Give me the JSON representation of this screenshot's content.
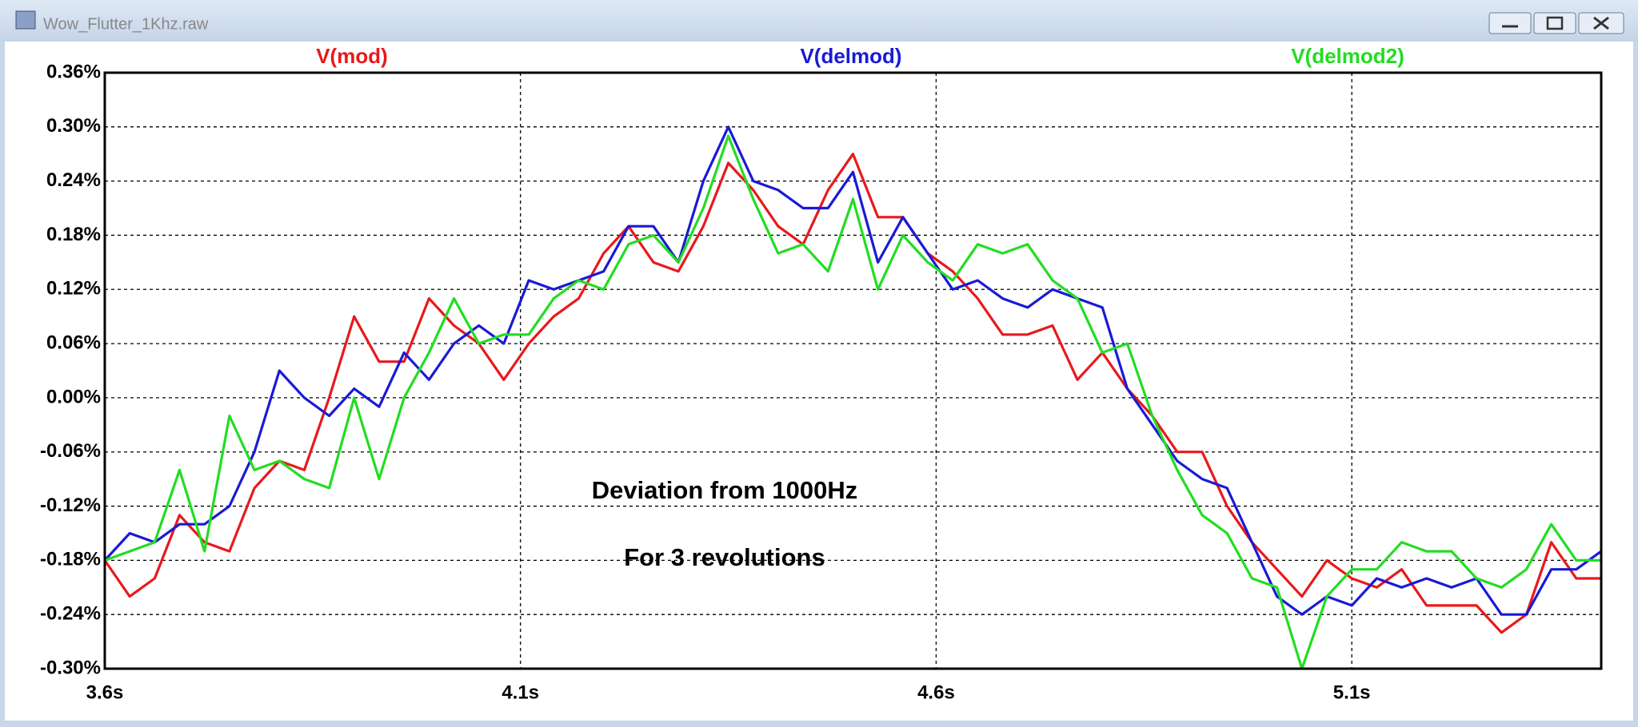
{
  "chart_data": {
    "type": "line",
    "title": "Wow_Flutter_1Khz.raw",
    "annotations": [
      "Deviation from 1000Hz",
      "For 3 revolutions"
    ],
    "x": [
      3.6,
      3.63,
      3.66,
      3.69,
      3.72,
      3.75,
      3.78,
      3.81,
      3.84,
      3.87,
      3.9,
      3.93,
      3.96,
      3.99,
      4.02,
      4.05,
      4.08,
      4.11,
      4.14,
      4.17,
      4.2,
      4.23,
      4.26,
      4.29,
      4.32,
      4.35,
      4.38,
      4.41,
      4.44,
      4.47,
      4.5,
      4.53,
      4.56,
      4.59,
      4.62,
      4.65,
      4.68,
      4.71,
      4.74,
      4.77,
      4.8,
      4.83,
      4.86,
      4.89,
      4.92,
      4.95,
      4.98,
      5.01,
      5.04,
      5.07,
      5.1,
      5.13,
      5.16,
      5.19,
      5.22,
      5.25,
      5.28,
      5.31,
      5.34,
      5.37,
      5.4
    ],
    "series": [
      {
        "name": "V(mod)",
        "color": "#e8191c",
        "values": [
          -0.18,
          -0.22,
          -0.2,
          -0.13,
          -0.16,
          -0.17,
          -0.1,
          -0.07,
          -0.08,
          0.0,
          0.09,
          0.04,
          0.04,
          0.11,
          0.08,
          0.06,
          0.02,
          0.06,
          0.09,
          0.11,
          0.16,
          0.19,
          0.15,
          0.14,
          0.19,
          0.26,
          0.23,
          0.19,
          0.17,
          0.23,
          0.27,
          0.2,
          0.2,
          0.16,
          0.14,
          0.11,
          0.07,
          0.07,
          0.08,
          0.02,
          0.05,
          0.01,
          -0.02,
          -0.06,
          -0.06,
          -0.12,
          -0.16,
          -0.19,
          -0.22,
          -0.18,
          -0.2,
          -0.21,
          -0.19,
          -0.23,
          -0.23,
          -0.23,
          -0.26,
          -0.24,
          -0.16,
          -0.2,
          -0.2
        ]
      },
      {
        "name": "V(delmod)",
        "color": "#1a1ad6",
        "values": [
          -0.18,
          -0.15,
          -0.16,
          -0.14,
          -0.14,
          -0.12,
          -0.06,
          0.03,
          0.0,
          -0.02,
          0.01,
          -0.01,
          0.05,
          0.02,
          0.06,
          0.08,
          0.06,
          0.13,
          0.12,
          0.13,
          0.14,
          0.19,
          0.19,
          0.15,
          0.24,
          0.3,
          0.24,
          0.23,
          0.21,
          0.21,
          0.25,
          0.15,
          0.2,
          0.16,
          0.12,
          0.13,
          0.11,
          0.1,
          0.12,
          0.11,
          0.1,
          0.01,
          -0.03,
          -0.07,
          -0.09,
          -0.1,
          -0.16,
          -0.22,
          -0.24,
          -0.22,
          -0.23,
          -0.2,
          -0.21,
          -0.2,
          -0.21,
          -0.2,
          -0.24,
          -0.24,
          -0.19,
          -0.19,
          -0.17
        ]
      },
      {
        "name": "V(delmod2)",
        "color": "#22dd22",
        "values": [
          -0.18,
          -0.17,
          -0.16,
          -0.08,
          -0.17,
          -0.02,
          -0.08,
          -0.07,
          -0.09,
          -0.1,
          0.0,
          -0.09,
          0.0,
          0.05,
          0.11,
          0.06,
          0.07,
          0.07,
          0.11,
          0.13,
          0.12,
          0.17,
          0.18,
          0.15,
          0.21,
          0.29,
          0.22,
          0.16,
          0.17,
          0.14,
          0.22,
          0.12,
          0.18,
          0.15,
          0.13,
          0.17,
          0.16,
          0.17,
          0.13,
          0.11,
          0.05,
          0.06,
          -0.02,
          -0.08,
          -0.13,
          -0.15,
          -0.2,
          -0.21,
          -0.3,
          -0.22,
          -0.19,
          -0.19,
          -0.16,
          -0.17,
          -0.17,
          -0.2,
          -0.21,
          -0.19,
          -0.14,
          -0.18,
          -0.18
        ]
      }
    ],
    "xlim": [
      3.6,
      5.4
    ],
    "ylim": [
      -0.3,
      0.36
    ],
    "xticks": [
      {
        "value": 3.6,
        "label": "3.6s"
      },
      {
        "value": 4.1,
        "label": "4.1s"
      },
      {
        "value": 4.6,
        "label": "4.6s"
      },
      {
        "value": 5.1,
        "label": "5.1s"
      }
    ],
    "yticks": [
      {
        "value": -0.3,
        "label": "-0.30%"
      },
      {
        "value": -0.24,
        "label": "-0.24%"
      },
      {
        "value": -0.18,
        "label": "-0.18%"
      },
      {
        "value": -0.12,
        "label": "-0.12%"
      },
      {
        "value": -0.06,
        "label": "-0.06%"
      },
      {
        "value": 0,
        "label": "0.00%"
      },
      {
        "value": 0.06,
        "label": "0.06%"
      },
      {
        "value": 0.12,
        "label": "0.12%"
      },
      {
        "value": 0.18,
        "label": "0.18%"
      },
      {
        "value": 0.24,
        "label": "0.24%"
      },
      {
        "value": 0.3,
        "label": "0.30%"
      },
      {
        "value": 0.36,
        "label": "0.36%"
      }
    ],
    "grid": true
  }
}
